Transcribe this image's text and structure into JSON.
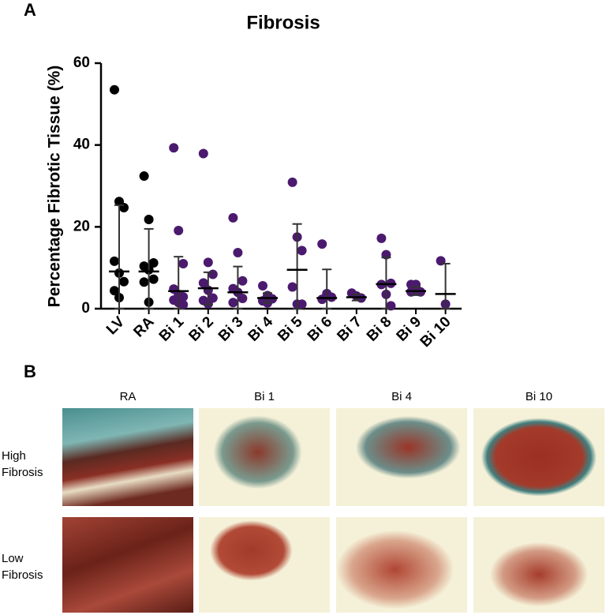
{
  "chart_data": {
    "type": "dotplot",
    "title": "Fibrosis",
    "y_label": "Percentage Fibrotic Tissue (%)",
    "ylim": [
      0,
      60
    ],
    "yticks": [
      0,
      20,
      40,
      60
    ],
    "categories": [
      "LV",
      "RA",
      "Bi 1",
      "Bi 2",
      "Bi 3",
      "Bi 4",
      "Bi 5",
      "Bi 6",
      "Bi 7",
      "Bi 8",
      "Bi 9",
      "Bi 10"
    ],
    "groups": [
      {
        "color": "#000000",
        "points": [
          53.5,
          26.2,
          24.7,
          11.6,
          8.7,
          6.6,
          4.4,
          2.7
        ],
        "center": 9.1,
        "high": 25.3,
        "low": 0
      },
      {
        "color": "#000000",
        "points": [
          32.4,
          21.8,
          11.2,
          10.4,
          9.5,
          7.2,
          6.5,
          1.6
        ],
        "center": 9.1,
        "high": 19.5,
        "low": 0
      },
      {
        "color": "#4b1a6e",
        "points": [
          39.3,
          19.1,
          11,
          4.8,
          3.5,
          2.9,
          2.1,
          1.5,
          1
        ],
        "center": 4.3,
        "high": 12.7,
        "low": 0
      },
      {
        "color": "#4b1a6e",
        "points": [
          37.9,
          11.3,
          8.4,
          6.3,
          4.5,
          2.6,
          2,
          1.2
        ],
        "center": 5,
        "high": 8.9,
        "low": 1
      },
      {
        "color": "#4b1a6e",
        "points": [
          22.2,
          13.7,
          6.8,
          4.9,
          4,
          2.5,
          1.5
        ],
        "center": 4,
        "high": 10.3,
        "low": 0
      },
      {
        "color": "#4b1a6e",
        "points": [
          5.6,
          3.2,
          2.4,
          1.9,
          1.4
        ],
        "center": 2.6,
        "high": 3.8,
        "low": 1.4
      },
      {
        "color": "#4b1a6e",
        "points": [
          30.9,
          17.5,
          14.2,
          5.3,
          1.1,
          1.1
        ],
        "center": 9.5,
        "high": 20.7,
        "low": 0
      },
      {
        "color": "#4b1a6e",
        "points": [
          15.8,
          3.7,
          2.8,
          2.3
        ],
        "center": 2.6,
        "high": 9.6,
        "low": 0
      },
      {
        "color": "#4b1a6e",
        "points": [
          3.8,
          3.1,
          2.6
        ],
        "center": 2.8,
        "high": 3.5,
        "low": 2
      },
      {
        "color": "#4b1a6e",
        "points": [
          17.2,
          13.2,
          6.2,
          5.9,
          3.5,
          0.7
        ],
        "center": 6,
        "high": 12.5,
        "low": 0
      },
      {
        "color": "#4b1a6e",
        "points": [
          5.9,
          5.9,
          4.1,
          4.1
        ],
        "center": 4.3,
        "high": 5.3,
        "low": 3.3
      },
      {
        "color": "#4b1a6e",
        "points": [
          11.7,
          1.1
        ],
        "center": 3.6,
        "high": 11,
        "low": 0
      }
    ]
  },
  "panel_a": "A",
  "panel_b": "B",
  "columns": [
    "RA",
    "Bi 1",
    "Bi 4",
    "Bi 10"
  ],
  "rows": [
    "High Fibrosis",
    "Low Fibrosis"
  ]
}
